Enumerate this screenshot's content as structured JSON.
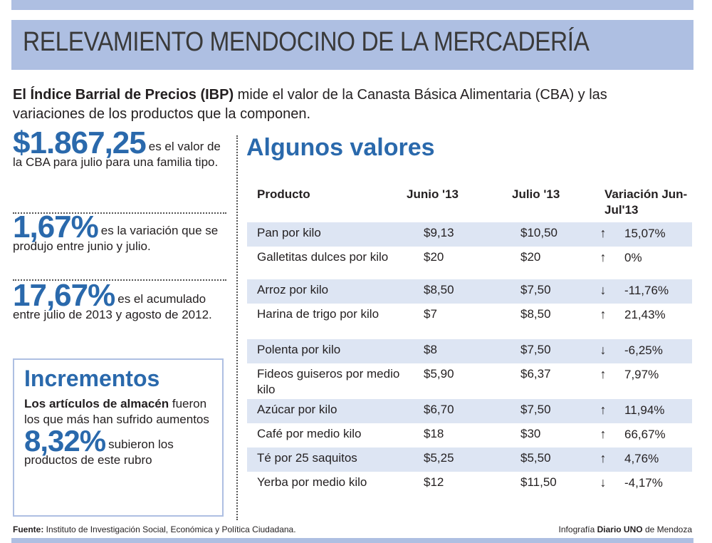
{
  "title": "RELEVAMIENTO MENDOCINO DE LA MERCADERÍA",
  "intro": {
    "bold": "El Índice Barrial de Precios (IBP)",
    "text": " mide el valor de la Canasta Básica Alimentaria (CBA) y las variaciones de los productos que la componen."
  },
  "stats": [
    {
      "big": "$1.867,25",
      "text": "es el valor de la CBA para julio para una familia tipo."
    },
    {
      "big": "1,67%",
      "text": "es la variación que se produjo entre junio y julio."
    },
    {
      "big": "17,67%",
      "text": "es el acumulado entre julio de 2013 y agosto de 2012."
    }
  ],
  "incrementos": {
    "title": "Incrementos",
    "bold": "Los artículos de almacén",
    "text": " fueron los que más han sufrido aumentos",
    "big": "8,32%",
    "big_text": "subieron los productos de este rubro"
  },
  "table": {
    "title": "Algunos valores",
    "headers": [
      "Producto",
      "Junio '13",
      "Julio '13",
      "Variación Jun-Jul'13"
    ],
    "rows": [
      {
        "producto": "Pan por kilo",
        "junio": "$9,13",
        "julio": "$10,50",
        "dir": "up",
        "variacion": "15,07%"
      },
      {
        "producto": "Galletitas dulces por kilo",
        "junio": "$20",
        "julio": "$20",
        "dir": "up",
        "variacion": "0%"
      },
      {
        "producto": "Arroz por kilo",
        "junio": "$8,50",
        "julio": "$7,50",
        "dir": "down",
        "variacion": "-11,76%"
      },
      {
        "producto": "Harina de trigo por kilo",
        "junio": "$7",
        "julio": "$8,50",
        "dir": "up",
        "variacion": "21,43%"
      },
      {
        "producto": "Polenta por kilo",
        "junio": "$8",
        "julio": "$7,50",
        "dir": "down",
        "variacion": "-6,25%"
      },
      {
        "producto": "Fideos guiseros por medio kilo",
        "junio": "$5,90",
        "julio": "$6,37",
        "dir": "up",
        "variacion": "7,97%"
      },
      {
        "producto": "Azúcar por kilo",
        "junio": "$6,70",
        "julio": "$7,50",
        "dir": "up",
        "variacion": "11,94%"
      },
      {
        "producto": "Café por medio kilo",
        "junio": "$18",
        "julio": "$30",
        "dir": "up",
        "variacion": "66,67%"
      },
      {
        "producto": "Té por 25 saquitos",
        "junio": "$5,25",
        "julio": "$5,50",
        "dir": "up",
        "variacion": "4,76%"
      },
      {
        "producto": "Yerba por medio kilo",
        "junio": "$12",
        "julio": "$11,50",
        "dir": "down",
        "variacion": "-4,17%"
      }
    ]
  },
  "footer": {
    "fuente_label": "Fuente:",
    "fuente": " Instituto de Investigación Social, Económica y Política Ciudadana.",
    "credit_pre": "Infografía ",
    "credit_bold": "Diario UNO",
    "credit_post": " de Mendoza"
  },
  "colors": {
    "accent": "#2a69ac",
    "band": "#aebfe2",
    "row_shade": "#dde5f3"
  }
}
